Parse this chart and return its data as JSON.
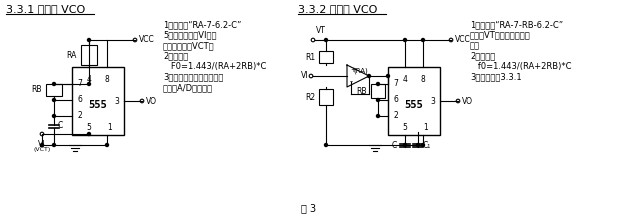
{
  "title1": "3.3.1 无稳型 VCO",
  "title2": "3.3.2 无稳型 VCO",
  "fig_label": "图 3",
  "text1_line1": "1）特点：“RA-7-6.2-C”",
  "text1_line2": "5端加输入信号VI或控",
  "text1_line3": "制，电压信号VCT。",
  "text1_line4": "2）公式：",
  "text1_line5": "   F0=1.443/(RA+2RB)*C",
  "text1_line6": "3）用途：脉宽调制电压频",
  "text1_line7": "变换、A/D变换等。",
  "text2_line1": "1）特点：“RA-7-RB-6.2-C”",
  "text2_line2": "输入有VT、运放等辅助器",
  "text2_line3": "件。",
  "text2_line4": "2）公式：",
  "text2_line5": "   f0=1.443/(RA+2RB)*C",
  "text2_line6": "3）用途：同3.3.1",
  "bg_color": "#ffffff",
  "line_color": "#000000",
  "font_size": 7.0,
  "title_font_size": 8.0
}
